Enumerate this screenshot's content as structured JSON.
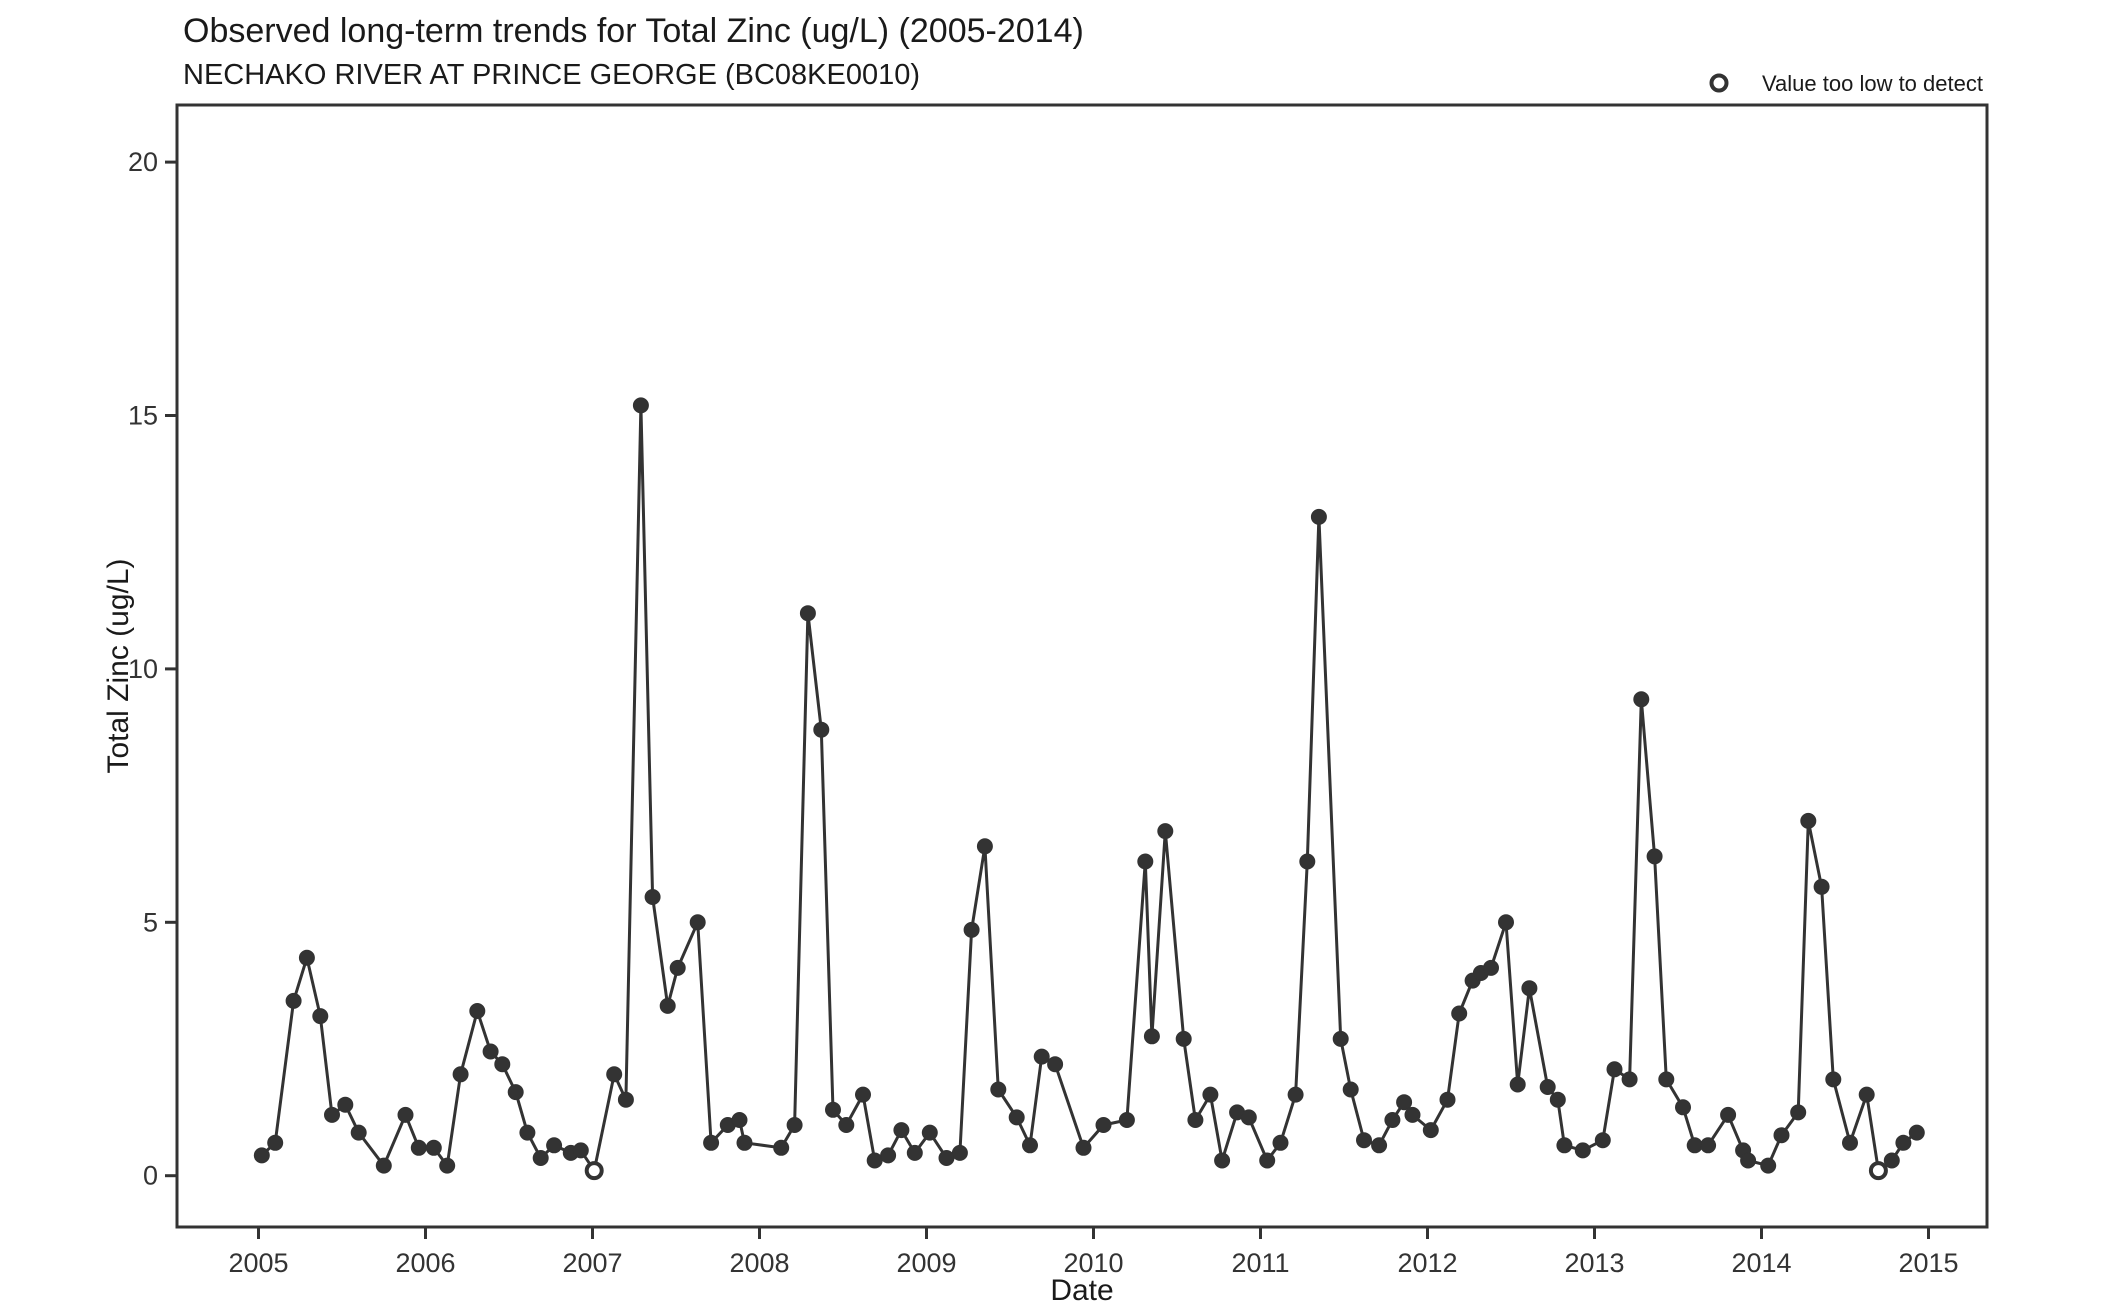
{
  "chart_data": {
    "type": "line",
    "title": "Observed long-term trends for Total Zinc (ug/L) (2005-2014)",
    "subtitle": "NECHAKO RIVER AT PRINCE GEORGE (BC08KE0010)",
    "xlabel": "Date",
    "ylabel": "Total Zinc (ug/L)",
    "legend": {
      "label": "Value too low to detect",
      "marker": "open-circle",
      "position": "top-right"
    },
    "x_ticks": [
      2005,
      2006,
      2007,
      2008,
      2009,
      2010,
      2011,
      2012,
      2013,
      2014,
      2015
    ],
    "y_ticks": [
      0,
      5,
      10,
      15,
      20
    ],
    "xlim": [
      2004.51,
      2015.35
    ],
    "ylim": [
      -1.0,
      21.1
    ],
    "grid": "off",
    "series_name": "Total Zinc (ug/L)",
    "point_note": "third array element 1 = value too low to detect (open circle)",
    "points": [
      [
        2005.02,
        0.4
      ],
      [
        2005.1,
        0.65
      ],
      [
        2005.21,
        3.45
      ],
      [
        2005.29,
        4.3
      ],
      [
        2005.37,
        3.15
      ],
      [
        2005.44,
        1.2
      ],
      [
        2005.52,
        1.4
      ],
      [
        2005.6,
        0.85
      ],
      [
        2005.75,
        0.2
      ],
      [
        2005.88,
        1.2
      ],
      [
        2005.96,
        0.55
      ],
      [
        2006.05,
        0.55
      ],
      [
        2006.13,
        0.2
      ],
      [
        2006.21,
        2.0
      ],
      [
        2006.31,
        3.25
      ],
      [
        2006.39,
        2.45
      ],
      [
        2006.46,
        2.2
      ],
      [
        2006.54,
        1.65
      ],
      [
        2006.61,
        0.85
      ],
      [
        2006.69,
        0.35
      ],
      [
        2006.77,
        0.6
      ],
      [
        2006.87,
        0.45
      ],
      [
        2006.93,
        0.5
      ],
      [
        2007.01,
        0.1,
        1
      ],
      [
        2007.13,
        2.0
      ],
      [
        2007.2,
        1.5
      ],
      [
        2007.29,
        15.2
      ],
      [
        2007.36,
        5.5
      ],
      [
        2007.45,
        3.35
      ],
      [
        2007.51,
        4.1
      ],
      [
        2007.63,
        5.0
      ],
      [
        2007.71,
        0.65
      ],
      [
        2007.81,
        1.0
      ],
      [
        2007.88,
        1.1
      ],
      [
        2007.91,
        0.65
      ],
      [
        2008.13,
        0.55
      ],
      [
        2008.21,
        1.0
      ],
      [
        2008.29,
        11.1
      ],
      [
        2008.37,
        8.8
      ],
      [
        2008.44,
        1.3
      ],
      [
        2008.52,
        1.0
      ],
      [
        2008.62,
        1.6
      ],
      [
        2008.69,
        0.3
      ],
      [
        2008.77,
        0.4
      ],
      [
        2008.85,
        0.9
      ],
      [
        2008.93,
        0.45
      ],
      [
        2009.02,
        0.85
      ],
      [
        2009.12,
        0.35
      ],
      [
        2009.2,
        0.45
      ],
      [
        2009.27,
        4.85
      ],
      [
        2009.35,
        6.5
      ],
      [
        2009.43,
        1.7
      ],
      [
        2009.54,
        1.15
      ],
      [
        2009.62,
        0.6
      ],
      [
        2009.69,
        2.35
      ],
      [
        2009.77,
        2.2
      ],
      [
        2009.94,
        0.55
      ],
      [
        2010.06,
        1.0
      ],
      [
        2010.2,
        1.1
      ],
      [
        2010.31,
        6.2
      ],
      [
        2010.35,
        2.75
      ],
      [
        2010.43,
        6.8
      ],
      [
        2010.54,
        2.7
      ],
      [
        2010.61,
        1.1
      ],
      [
        2010.7,
        1.6
      ],
      [
        2010.77,
        0.3
      ],
      [
        2010.86,
        1.25
      ],
      [
        2010.93,
        1.15
      ],
      [
        2011.04,
        0.3
      ],
      [
        2011.12,
        0.65
      ],
      [
        2011.21,
        1.6
      ],
      [
        2011.28,
        6.2
      ],
      [
        2011.35,
        13.0
      ],
      [
        2011.48,
        2.7
      ],
      [
        2011.54,
        1.7
      ],
      [
        2011.62,
        0.7
      ],
      [
        2011.71,
        0.6
      ],
      [
        2011.79,
        1.1
      ],
      [
        2011.86,
        1.45
      ],
      [
        2011.91,
        1.2
      ],
      [
        2012.02,
        0.9
      ],
      [
        2012.12,
        1.5
      ],
      [
        2012.19,
        3.2
      ],
      [
        2012.27,
        3.85
      ],
      [
        2012.32,
        4.0
      ],
      [
        2012.38,
        4.1
      ],
      [
        2012.47,
        5.0
      ],
      [
        2012.54,
        1.8
      ],
      [
        2012.61,
        3.7
      ],
      [
        2012.72,
        1.75
      ],
      [
        2012.78,
        1.5
      ],
      [
        2012.82,
        0.6
      ],
      [
        2012.93,
        0.5
      ],
      [
        2013.05,
        0.7
      ],
      [
        2013.12,
        2.1
      ],
      [
        2013.21,
        1.9
      ],
      [
        2013.28,
        9.4
      ],
      [
        2013.36,
        6.3
      ],
      [
        2013.43,
        1.9
      ],
      [
        2013.53,
        1.35
      ],
      [
        2013.6,
        0.6
      ],
      [
        2013.68,
        0.6
      ],
      [
        2013.8,
        1.2
      ],
      [
        2013.89,
        0.5
      ],
      [
        2013.92,
        0.3
      ],
      [
        2014.04,
        0.2
      ],
      [
        2014.12,
        0.8
      ],
      [
        2014.22,
        1.25
      ],
      [
        2014.28,
        7.0
      ],
      [
        2014.36,
        5.7
      ],
      [
        2014.43,
        1.9
      ],
      [
        2014.53,
        0.65
      ],
      [
        2014.63,
        1.6
      ],
      [
        2014.7,
        0.1,
        1
      ],
      [
        2014.78,
        0.3
      ],
      [
        2014.85,
        0.65
      ],
      [
        2014.93,
        0.85
      ]
    ],
    "colors": {
      "line": "#333333",
      "point": "#333333",
      "axis": "#333333",
      "background": "#ffffff"
    }
  }
}
